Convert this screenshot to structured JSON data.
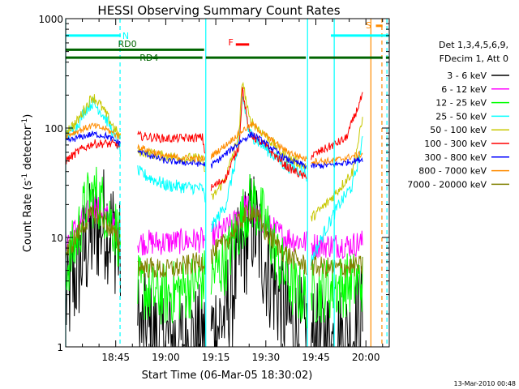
{
  "chart_data": {
    "type": "line",
    "title": "HESSI Observing Summary Count Rates",
    "xlabel": "Start Time (06-Mar-05 18:30:02)",
    "ylabel_main": "Count Rate (s",
    "ylabel_sup1": "-1",
    "ylabel_mid": " detector",
    "ylabel_sup2": "-1",
    "ylabel_end": ")",
    "y_scale": "log",
    "ylim": [
      1,
      1000
    ],
    "xlim_minutes": [
      0,
      97
    ],
    "x_ticks": [
      {
        "label": "18:45",
        "min": 15
      },
      {
        "label": "19:00",
        "min": 30
      },
      {
        "label": "19:15",
        "min": 45
      },
      {
        "label": "19:30",
        "min": 60
      },
      {
        "label": "19:45",
        "min": 75
      },
      {
        "label": "20:00",
        "min": 90
      }
    ],
    "y_ticks": [
      {
        "label": "1",
        "value": 1
      },
      {
        "label": "10",
        "value": 10
      },
      {
        "label": "100",
        "value": 100
      },
      {
        "label": "1000",
        "value": 1000
      }
    ],
    "legend_header": [
      "Det 1,3,4,5,6,9,",
      "FDecim 1, Att 0"
    ],
    "legend_position": "right",
    "timestamp": "13-Mar-2010 00:48",
    "flags": [
      {
        "label": "N",
        "color": "#00ffff",
        "segments": [
          [
            0,
            16.5
          ],
          [
            79.5,
            97
          ]
        ],
        "value": 700
      },
      {
        "label": "RD0",
        "color": "#006400",
        "segments": [
          [
            0,
            41.5
          ]
        ],
        "value": 520
      },
      {
        "label": "RD4",
        "color": "#006400",
        "segments": [
          [
            0,
            41
          ],
          [
            42,
            72
          ],
          [
            73,
            95
          ],
          [
            96,
            97
          ]
        ],
        "value": 440
      },
      {
        "label": "F",
        "color": "#ff0000",
        "segments": [
          [
            51,
            55
          ]
        ],
        "value": 580
      },
      {
        "label": "S",
        "color": "#ff8c00",
        "segments": [
          [
            93,
            95
          ]
        ],
        "value": 860
      }
    ],
    "vlines_solid": [
      {
        "min": 0,
        "color": "#00ffff"
      },
      {
        "min": 42,
        "color": "#00ffff"
      },
      {
        "min": 72.5,
        "color": "#00ffff"
      },
      {
        "min": 80.5,
        "color": "#00ffff"
      },
      {
        "min": 91.5,
        "color": "#ff8c00"
      }
    ],
    "vlines_dashed": [
      {
        "min": 16.3,
        "color": "#00ffff"
      },
      {
        "min": 94.8,
        "color": "#ff8c00"
      },
      {
        "min": 96.3,
        "color": "#00ffff"
      }
    ],
    "series": [
      {
        "name": "3 - 6 keV",
        "color": "#000000",
        "noise": 0.55,
        "min": 1,
        "gaps": [
          [
            16.5,
            21.5
          ],
          [
            42,
            43.5
          ],
          [
            72.3,
            73.5
          ]
        ],
        "points": [
          [
            0,
            2.5
          ],
          [
            3,
            4.5
          ],
          [
            6,
            8
          ],
          [
            9,
            12
          ],
          [
            12,
            14
          ],
          [
            15,
            10
          ],
          [
            16.5,
            6
          ],
          [
            21.5,
            1.5
          ],
          [
            26,
            1.2
          ],
          [
            30,
            1.1
          ],
          [
            41,
            1.1
          ],
          [
            43.5,
            1.3
          ],
          [
            48,
            2
          ],
          [
            53,
            8
          ],
          [
            56,
            14
          ],
          [
            60,
            6
          ],
          [
            64,
            2.8
          ],
          [
            68,
            1.5
          ],
          [
            72,
            1.2
          ],
          [
            73.5,
            1.1
          ],
          [
            85,
            1.1
          ],
          [
            89,
            2
          ]
        ]
      },
      {
        "name": "6 - 12 keV",
        "color": "#ff00ff",
        "noise": 0.12,
        "gaps": [
          [
            16.5,
            21.5
          ],
          [
            42,
            43.5
          ],
          [
            72.3,
            73.5
          ]
        ],
        "points": [
          [
            0,
            9
          ],
          [
            3,
            12
          ],
          [
            6,
            16
          ],
          [
            9,
            20
          ],
          [
            12,
            16
          ],
          [
            15,
            12
          ],
          [
            16.5,
            10
          ],
          [
            21.5,
            9
          ],
          [
            30,
            9
          ],
          [
            41,
            9.5
          ],
          [
            43.5,
            10
          ],
          [
            50,
            13
          ],
          [
            54,
            20
          ],
          [
            58,
            15
          ],
          [
            62,
            12
          ],
          [
            66,
            10
          ],
          [
            72,
            9
          ],
          [
            73.5,
            8.5
          ],
          [
            85,
            8.5
          ],
          [
            89,
            9
          ]
        ]
      },
      {
        "name": "12 - 25 keV",
        "color": "#00ff00",
        "noise": 0.3,
        "gaps": [
          [
            16.5,
            21.5
          ],
          [
            42,
            43.5
          ],
          [
            72.3,
            73.5
          ]
        ],
        "points": [
          [
            0,
            5
          ],
          [
            3,
            9
          ],
          [
            6,
            20
          ],
          [
            9,
            25
          ],
          [
            12,
            18
          ],
          [
            15,
            12
          ],
          [
            16.5,
            9
          ],
          [
            21.5,
            3.5
          ],
          [
            26,
            3
          ],
          [
            30,
            3
          ],
          [
            36,
            3.4
          ],
          [
            41,
            4
          ],
          [
            43.5,
            4.5
          ],
          [
            48,
            6
          ],
          [
            53,
            15
          ],
          [
            56,
            22
          ],
          [
            60,
            13
          ],
          [
            64,
            6
          ],
          [
            68,
            3.5
          ],
          [
            72,
            2.8
          ],
          [
            73.5,
            3
          ],
          [
            80,
            3.5
          ],
          [
            89,
            4
          ]
        ]
      },
      {
        "name": "25 - 50 keV",
        "color": "#00ffff",
        "noise": 0.06,
        "gaps": [
          [
            16.5,
            21.5
          ],
          [
            42,
            43.5
          ],
          [
            72.3,
            73.5
          ]
        ],
        "points": [
          [
            0,
            85
          ],
          [
            3,
            100
          ],
          [
            6,
            150
          ],
          [
            8,
            170
          ],
          [
            10,
            150
          ],
          [
            13,
            110
          ],
          [
            16.5,
            60
          ],
          [
            21.5,
            40
          ],
          [
            30,
            30
          ],
          [
            41,
            28
          ],
          [
            43.5,
            12
          ],
          [
            48,
            20
          ],
          [
            52,
            70
          ],
          [
            53,
            200
          ],
          [
            55,
            90
          ],
          [
            60,
            65
          ],
          [
            66,
            45
          ],
          [
            72,
            40
          ],
          [
            73.5,
            6
          ],
          [
            78,
            12
          ],
          [
            82,
            20
          ],
          [
            86,
            30
          ],
          [
            89,
            75
          ]
        ]
      },
      {
        "name": "50 - 100 keV",
        "color": "#c8c800",
        "noise": 0.05,
        "gaps": [
          [
            16.5,
            21.5
          ],
          [
            42,
            43.5
          ],
          [
            72.3,
            73.5
          ]
        ],
        "points": [
          [
            0,
            95
          ],
          [
            3,
            110
          ],
          [
            6,
            155
          ],
          [
            8,
            195
          ],
          [
            10,
            170
          ],
          [
            13,
            120
          ],
          [
            16.5,
            80
          ],
          [
            21.5,
            62
          ],
          [
            30,
            55
          ],
          [
            41,
            52
          ],
          [
            43.5,
            22
          ],
          [
            48,
            35
          ],
          [
            52,
            90
          ],
          [
            53,
            280
          ],
          [
            55,
            120
          ],
          [
            60,
            85
          ],
          [
            66,
            55
          ],
          [
            72,
            45
          ],
          [
            73.5,
            15
          ],
          [
            78,
            20
          ],
          [
            82,
            28
          ],
          [
            86,
            40
          ],
          [
            89,
            120
          ]
        ]
      },
      {
        "name": "100 - 300 keV",
        "color": "#ff0000",
        "noise": 0.04,
        "gaps": [
          [
            16.5,
            21.5
          ],
          [
            42,
            43.5
          ],
          [
            72.3,
            73.5
          ]
        ],
        "points": [
          [
            0,
            50
          ],
          [
            4,
            62
          ],
          [
            8,
            72
          ],
          [
            12,
            72
          ],
          [
            16.5,
            70
          ],
          [
            21.5,
            85
          ],
          [
            30,
            80
          ],
          [
            41,
            82
          ],
          [
            43.5,
            28
          ],
          [
            48,
            35
          ],
          [
            52,
            70
          ],
          [
            53,
            230
          ],
          [
            55,
            90
          ],
          [
            60,
            68
          ],
          [
            66,
            45
          ],
          [
            72,
            35
          ],
          [
            73.5,
            55
          ],
          [
            78,
            65
          ],
          [
            84,
            80
          ],
          [
            89,
            200
          ]
        ]
      },
      {
        "name": "300 - 800 keV",
        "color": "#0000ff",
        "noise": 0.03,
        "gaps": [
          [
            16.5,
            21.5
          ],
          [
            42,
            43.5
          ],
          [
            72.3,
            73.5
          ]
        ],
        "points": [
          [
            0,
            75
          ],
          [
            4,
            82
          ],
          [
            8,
            88
          ],
          [
            12,
            85
          ],
          [
            16.5,
            72
          ],
          [
            21.5,
            62
          ],
          [
            30,
            50
          ],
          [
            41,
            47
          ],
          [
            43.5,
            45
          ],
          [
            48,
            58
          ],
          [
            53,
            78
          ],
          [
            56,
            88
          ],
          [
            60,
            72
          ],
          [
            66,
            52
          ],
          [
            72,
            45
          ],
          [
            73.5,
            45
          ],
          [
            80,
            46
          ],
          [
            89,
            52
          ]
        ]
      },
      {
        "name": "800 - 7000 keV",
        "color": "#ff8c00",
        "noise": 0.03,
        "gaps": [
          [
            16.5,
            21.5
          ],
          [
            42,
            43.5
          ],
          [
            72.3,
            73.5
          ]
        ],
        "points": [
          [
            0,
            85
          ],
          [
            4,
            95
          ],
          [
            8,
            105
          ],
          [
            12,
            98
          ],
          [
            16.5,
            82
          ],
          [
            21.5,
            68
          ],
          [
            30,
            55
          ],
          [
            41,
            52
          ],
          [
            43.5,
            55
          ],
          [
            48,
            70
          ],
          [
            53,
            95
          ],
          [
            56,
            108
          ],
          [
            60,
            85
          ],
          [
            66,
            62
          ],
          [
            72,
            52
          ],
          [
            73.5,
            50
          ],
          [
            80,
            50
          ],
          [
            89,
            58
          ]
        ]
      },
      {
        "name": "7000 - 20000 keV",
        "color": "#808000",
        "noise": 0.1,
        "gaps": [
          [
            16.5,
            21.5
          ],
          [
            42,
            43.5
          ],
          [
            72.3,
            73.5
          ]
        ],
        "points": [
          [
            0,
            7
          ],
          [
            3,
            10
          ],
          [
            6,
            14
          ],
          [
            9,
            17
          ],
          [
            12,
            14
          ],
          [
            15,
            10
          ],
          [
            16.5,
            8
          ],
          [
            21.5,
            5.5
          ],
          [
            30,
            5
          ],
          [
            36,
            5.5
          ],
          [
            41,
            6
          ],
          [
            43.5,
            7
          ],
          [
            48,
            9
          ],
          [
            53,
            15
          ],
          [
            56,
            18
          ],
          [
            60,
            11
          ],
          [
            66,
            7
          ],
          [
            72,
            5.5
          ],
          [
            73.5,
            5.5
          ],
          [
            80,
            5.2
          ],
          [
            89,
            5.5
          ]
        ]
      }
    ]
  }
}
